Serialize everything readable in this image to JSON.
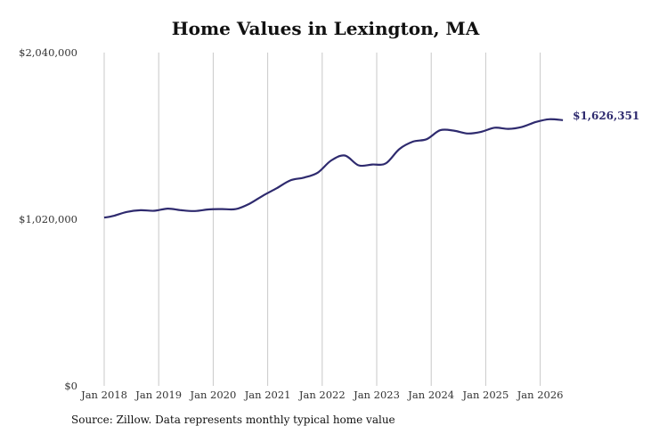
{
  "chart_data": {
    "type": "line",
    "title": "Home Values in Lexington, MA",
    "xlabel": "",
    "ylabel": "",
    "ylim": [
      0,
      2040000
    ],
    "y_ticks": [
      "$0",
      "$1,020,000",
      "$2,040,000"
    ],
    "x_ticks": [
      "Jan 2018",
      "Jan 2019",
      "Jan 2020",
      "Jan 2021",
      "Jan 2022",
      "Jan 2023",
      "Jan 2024",
      "Jan 2025",
      "Jan 2026"
    ],
    "grid": "vertical",
    "line_color": "#2e2a6e",
    "end_label": "$1,626,351",
    "series": [
      {
        "x": [
          "2018-01",
          "2018-03",
          "2018-06",
          "2018-09",
          "2018-12",
          "2019-03",
          "2019-06",
          "2019-09",
          "2019-12",
          "2020-03",
          "2020-06",
          "2020-09",
          "2020-12",
          "2021-03",
          "2021-06",
          "2021-09",
          "2021-12",
          "2022-03",
          "2022-06",
          "2022-09",
          "2022-12",
          "2023-03",
          "2023-06",
          "2023-09",
          "2023-12",
          "2024-03",
          "2024-06",
          "2024-09",
          "2024-12",
          "2025-03",
          "2025-06",
          "2025-09",
          "2025-12",
          "2026-03",
          "2026-06"
        ],
        "values": [
          1030000,
          1040000,
          1065000,
          1075000,
          1072000,
          1085000,
          1075000,
          1070000,
          1080000,
          1082000,
          1082000,
          1115000,
          1165000,
          1210000,
          1258000,
          1275000,
          1305000,
          1380000,
          1410000,
          1350000,
          1355000,
          1362000,
          1450000,
          1495000,
          1510000,
          1565000,
          1562000,
          1545000,
          1555000,
          1580000,
          1573000,
          1585000,
          1615000,
          1632000,
          1626351
        ]
      }
    ]
  },
  "source": "Source: Zillow. Data represents monthly typical home value"
}
